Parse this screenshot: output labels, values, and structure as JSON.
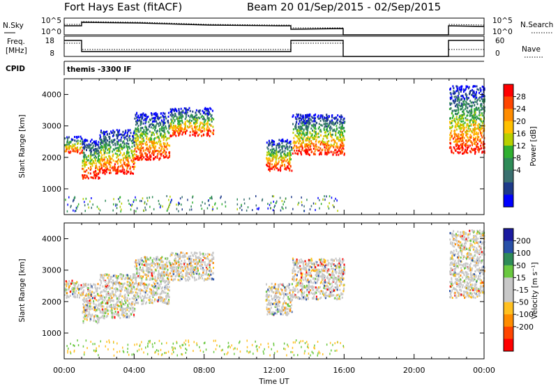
{
  "header": {
    "station": "Fort Hays East (fitACF)",
    "beam_dates": "Beam 20  01/Sep/2015 - 02/Sep/2015"
  },
  "summary_panels": {
    "nsky": {
      "label": "N.Sky",
      "left_ticks": [
        "10^5",
        "10^0"
      ],
      "right_label": "N.Search",
      "right_ticks": [
        "10^5",
        "10^0"
      ]
    },
    "freq": {
      "label_line1": "Freq.",
      "label_line2": "[MHz]",
      "left_ticks": [
        "18",
        "8"
      ],
      "right_label": "Nave",
      "right_ticks": [
        "60",
        "0"
      ]
    },
    "cpid": {
      "label": "CPID",
      "text": "themis  -3300  IF"
    }
  },
  "chart_data": [
    {
      "type": "heatmap",
      "name": "power",
      "ylabel": "Slant Range [km]",
      "yticks": [
        1000,
        2000,
        3000,
        4000
      ],
      "ylim": [
        180,
        4500
      ],
      "xlim": [
        0,
        24
      ],
      "colorbar": {
        "label": "Power [dB]",
        "ticks": [
          "28",
          "24",
          "20",
          "16",
          "12",
          "8",
          "4"
        ],
        "colors": [
          "#ff0000",
          "#ff4500",
          "#ff8c00",
          "#ffc000",
          "#b8d000",
          "#30b030",
          "#2e8b57",
          "#3a7070",
          "#1e3a8a",
          "#0000ff"
        ]
      },
      "segments": [
        {
          "t0": 0.0,
          "t1": 1.0,
          "r0": 2150,
          "r1": 2700
        },
        {
          "t0": 1.0,
          "t1": 2.0,
          "r0": 1350,
          "r1": 2600
        },
        {
          "t0": 2.0,
          "t1": 4.0,
          "r0": 1500,
          "r1": 2900
        },
        {
          "t0": 4.0,
          "t1": 6.0,
          "r0": 1950,
          "r1": 3450
        },
        {
          "t0": 6.0,
          "t1": 8.5,
          "r0": 2700,
          "r1": 3600
        },
        {
          "t0": 11.5,
          "t1": 13.0,
          "r0": 1600,
          "r1": 2600
        },
        {
          "t0": 13.0,
          "t1": 16.0,
          "r0": 2100,
          "r1": 3400
        },
        {
          "t0": 22.0,
          "t1": 24.0,
          "r0": 2150,
          "r1": 4300
        }
      ]
    },
    {
      "type": "heatmap",
      "name": "velocity",
      "xlabel": "Time UT",
      "ylabel": "Slant Range [km]",
      "xticks": [
        "00:00",
        "04:00",
        "08:00",
        "12:00",
        "16:00",
        "20:00",
        "00:00"
      ],
      "yticks": [
        1000,
        2000,
        3000,
        4000
      ],
      "ylim": [
        180,
        4500
      ],
      "xlim": [
        0,
        24
      ],
      "colorbar": {
        "label": "Velocity [m s⁻¹]",
        "ticks": [
          "200",
          "100",
          "50",
          "15",
          "-15",
          "-50",
          "-100",
          "-200"
        ],
        "colors": [
          "#1a1aa0",
          "#2850a8",
          "#2e8b57",
          "#6ac840",
          "#c8c8c8",
          "#c8c8c8",
          "#ffc020",
          "#ff8c00",
          "#ff4500",
          "#ff0000"
        ]
      },
      "segments": [
        {
          "t0": 0.0,
          "t1": 1.0,
          "r0": 2150,
          "r1": 2700
        },
        {
          "t0": 1.0,
          "t1": 2.0,
          "r0": 1350,
          "r1": 2600
        },
        {
          "t0": 2.0,
          "t1": 4.0,
          "r0": 1500,
          "r1": 2900
        },
        {
          "t0": 4.0,
          "t1": 6.0,
          "r0": 1950,
          "r1": 3450
        },
        {
          "t0": 6.0,
          "t1": 8.5,
          "r0": 2700,
          "r1": 3600
        },
        {
          "t0": 11.5,
          "t1": 13.0,
          "r0": 1600,
          "r1": 2600
        },
        {
          "t0": 13.0,
          "t1": 16.0,
          "r0": 2100,
          "r1": 3400
        },
        {
          "t0": 22.0,
          "t1": 24.0,
          "r0": 2150,
          "r1": 4300
        }
      ]
    }
  ]
}
